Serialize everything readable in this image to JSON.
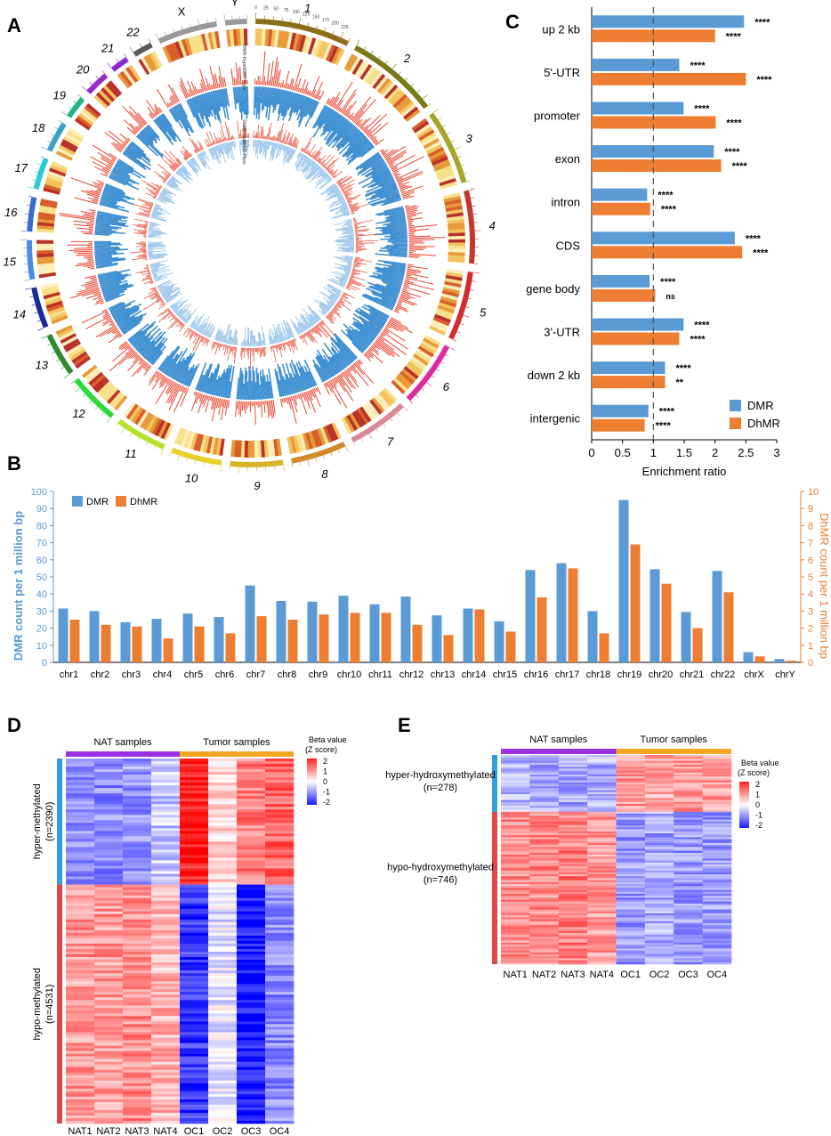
{
  "panel_labels": {
    "a": "A",
    "b": "B",
    "c": "C",
    "d": "D",
    "e": "E"
  },
  "colors": {
    "dmr": "#5b9bd5",
    "dhmr": "#ed7d31",
    "dmr_axis": "#5b9bd5",
    "dhmr_axis": "#ed7d31",
    "nat_bar": "#9b30e0",
    "tumor_bar": "#f5a623",
    "hyper_bar": "#2f9fe0",
    "hypo_bar": "#e04848",
    "circ_hyper": "#e8452f",
    "circ_hypo": "#3d8fd1"
  },
  "circos": {
    "chromosomes": [
      "1",
      "2",
      "3",
      "4",
      "5",
      "6",
      "7",
      "8",
      "9",
      "10",
      "11",
      "12",
      "13",
      "14",
      "15",
      "16",
      "17",
      "18",
      "19",
      "20",
      "21",
      "22",
      "X",
      "Y"
    ],
    "track_labels": [
      "DMR-Hyper",
      "DMR-Hypo",
      "DhMR-Hyper",
      "DhMR-Hypo"
    ],
    "tick_labels_chr1": [
      "0",
      "25",
      "50",
      "75",
      "100",
      "125",
      "150",
      "175",
      "200",
      "225"
    ]
  },
  "chart_data": [
    {
      "id": "C",
      "type": "bar",
      "orientation": "horizontal",
      "categories": [
        "up 2 kb",
        "5'-UTR",
        "promoter",
        "exon",
        "intron",
        "CDS",
        "gene body",
        "3'-UTR",
        "down 2 kb",
        "intergenic"
      ],
      "series": [
        {
          "name": "DMR",
          "values": [
            2.47,
            1.42,
            1.49,
            1.98,
            0.9,
            2.32,
            0.94,
            1.49,
            1.19,
            0.92
          ],
          "significance": [
            "****",
            "****",
            "****",
            "****",
            "****",
            "****",
            "****",
            "****",
            "****",
            "****"
          ]
        },
        {
          "name": "DhMR",
          "values": [
            2.0,
            2.5,
            2.01,
            2.1,
            0.95,
            2.44,
            1.03,
            1.42,
            1.19,
            0.86
          ],
          "significance": [
            "****",
            "****",
            "****",
            "****",
            "****",
            "****",
            "ns",
            "****",
            "**",
            "****"
          ]
        }
      ],
      "xlabel": "Enrichment ratio",
      "xlim": [
        0,
        3
      ],
      "xticks": [
        "0",
        "0.5",
        "1",
        "1.5",
        "2",
        "2.5",
        "3"
      ],
      "reference_line": 1,
      "legend": [
        "DMR",
        "DhMR"
      ],
      "legend_position": "bottom-right"
    },
    {
      "id": "B",
      "type": "bar",
      "categories": [
        "chr1",
        "chr2",
        "chr3",
        "chr4",
        "chr5",
        "chr6",
        "chr7",
        "chr8",
        "chr9",
        "chr10",
        "chr11",
        "chr12",
        "chr13",
        "chr14",
        "chr15",
        "chr16",
        "chr17",
        "chr18",
        "chr19",
        "chr20",
        "chr21",
        "chr22",
        "chrX",
        "chrY"
      ],
      "series": [
        {
          "name": "DMR",
          "axis": "left",
          "values": [
            31.5,
            30,
            23.5,
            25.5,
            28.5,
            26.5,
            45,
            36,
            35.5,
            39,
            34,
            38.5,
            27.5,
            31.5,
            24,
            54,
            58,
            30,
            95,
            54.5,
            29.5,
            53.5,
            6,
            2
          ]
        },
        {
          "name": "DhMR",
          "axis": "right",
          "values": [
            2.5,
            2.2,
            2.1,
            1.4,
            2.1,
            1.7,
            2.7,
            2.5,
            2.8,
            2.9,
            2.9,
            2.2,
            1.6,
            3.1,
            1.8,
            3.8,
            5.5,
            1.7,
            6.9,
            4.6,
            2.0,
            4.1,
            0.35,
            0.1
          ]
        }
      ],
      "ylabel": "DMR count  per 1 million bp",
      "y2label": "DhMR count per 1 million bp",
      "ylim": [
        0,
        100
      ],
      "y2lim": [
        0,
        10
      ],
      "yticks": [
        "0",
        "10",
        "20",
        "30",
        "40",
        "50",
        "60",
        "70",
        "80",
        "90",
        "100"
      ],
      "y2ticks": [
        "0",
        "1",
        "2",
        "3",
        "4",
        "5",
        "6",
        "7",
        "8",
        "9",
        "10"
      ],
      "legend": [
        "DMR",
        "DhMR"
      ],
      "legend_position": "top-left"
    },
    {
      "id": "D",
      "type": "heatmap",
      "columns": [
        "NAT1",
        "NAT2",
        "NAT3",
        "NAT4",
        "OC1",
        "OC2",
        "OC3",
        "OC4"
      ],
      "column_groups": [
        {
          "label": "NAT samples",
          "count": 4
        },
        {
          "label": "Tumor samples",
          "count": 4
        }
      ],
      "row_groups": [
        {
          "label": "hyper-methylated",
          "n": "(n=2390)",
          "rows": 2390,
          "pattern": [
            -0.8,
            -0.9,
            -0.8,
            -0.4,
            1.8,
            0.3,
            1.0,
            1.2
          ]
        },
        {
          "label": "hypo-methylated",
          "n": "(n=4531)",
          "rows": 4531,
          "pattern": [
            0.8,
            0.8,
            0.9,
            0.6,
            -1.6,
            -0.2,
            -1.8,
            -0.9
          ]
        }
      ],
      "legend_title": "Beta value",
      "legend_subtitle": "(Z score)",
      "legend_ticks": [
        "2",
        "1",
        "0",
        "-1",
        "-2"
      ]
    },
    {
      "id": "E",
      "type": "heatmap",
      "columns": [
        "NAT1",
        "NAT2",
        "NAT3",
        "NAT4",
        "OC1",
        "OC2",
        "OC3",
        "OC4"
      ],
      "column_groups": [
        {
          "label": "NAT samples",
          "count": 4
        },
        {
          "label": "Tumor samples",
          "count": 4
        }
      ],
      "row_groups": [
        {
          "label": "hyper-hydroxymethylated",
          "n": "(n=278)",
          "rows": 278,
          "pattern": [
            -0.6,
            -0.6,
            -0.7,
            -0.6,
            0.8,
            0.7,
            0.8,
            0.8
          ]
        },
        {
          "label": "hypo-hydroxymethylated",
          "n": "(n=746)",
          "rows": 746,
          "pattern": [
            0.9,
            0.9,
            1.0,
            0.8,
            -0.8,
            -0.7,
            -0.8,
            -0.8
          ]
        }
      ],
      "legend_title": "Beta value",
      "legend_subtitle": "(Z score)",
      "legend_ticks": [
        "2",
        "1",
        "0",
        "-1",
        "-2"
      ]
    }
  ]
}
